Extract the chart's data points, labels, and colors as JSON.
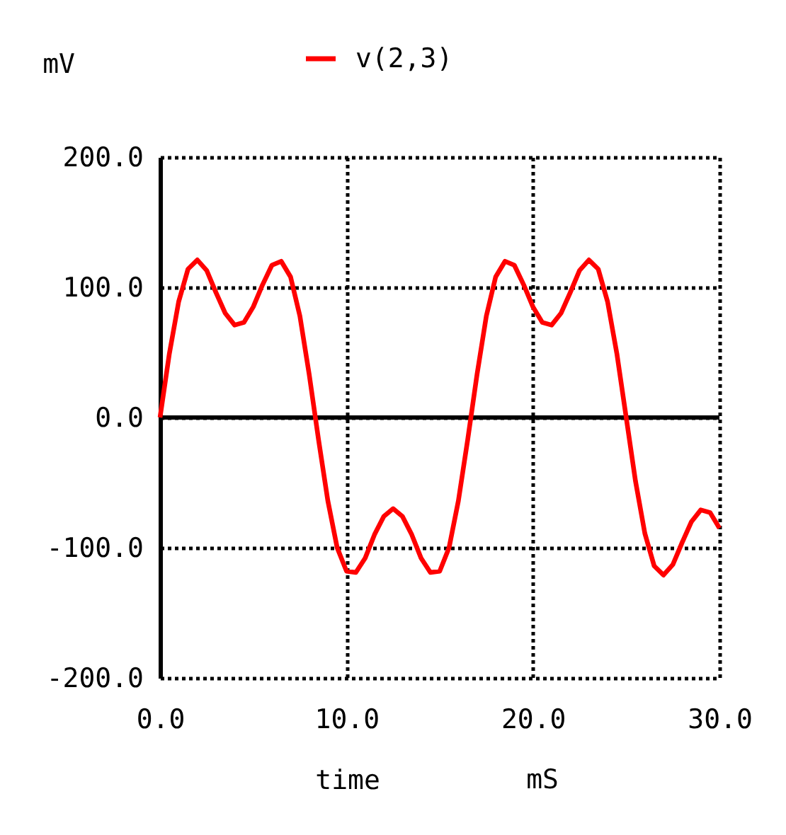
{
  "chart_data": {
    "type": "line",
    "xlabel": "time",
    "ylabel": "mV",
    "annotations": [
      "mS"
    ],
    "x": [
      0,
      0.5,
      1,
      1.5,
      2,
      2.5,
      3,
      3.5,
      4,
      4.5,
      5,
      5.5,
      6,
      6.5,
      7,
      7.5,
      8,
      8.5,
      9,
      9.5,
      10,
      10.5,
      11,
      11.5,
      12,
      12.5,
      13,
      13.5,
      14,
      14.5,
      15,
      15.5,
      16,
      16.5,
      17,
      17.5,
      18,
      18.5,
      19,
      19.5,
      20,
      20.5,
      21,
      21.5,
      22,
      22.5,
      23,
      23.5,
      24,
      24.5,
      25,
      25.5,
      26,
      26.5,
      27,
      27.5,
      28,
      28.5,
      29,
      29.5,
      30
    ],
    "series": [
      {
        "name": "v(2,3)",
        "color": "#ff0000",
        "values": [
          0,
          49,
          89,
          114,
          121,
          113,
          96,
          80,
          71,
          73,
          85,
          102,
          117,
          120,
          108,
          78,
          33,
          -17,
          -64,
          -100,
          -118,
          -119,
          -108,
          -90,
          -76,
          -70,
          -76,
          -90,
          -108,
          -119,
          -118,
          -100,
          -64,
          -17,
          33,
          78,
          108,
          120,
          117,
          102,
          85,
          73,
          71,
          80,
          96,
          113,
          121,
          114,
          89,
          49,
          0,
          -49,
          -89,
          -114,
          -121,
          -113,
          -96,
          -80,
          -71,
          -73,
          -85
        ]
      }
    ],
    "xlim": [
      0,
      30
    ],
    "ylim": [
      -200,
      200
    ],
    "xticks": [
      {
        "value": 0,
        "label": "0.0"
      },
      {
        "value": 10,
        "label": "10.0"
      },
      {
        "value": 20,
        "label": "20.0"
      },
      {
        "value": 30,
        "label": "30.0"
      }
    ],
    "yticks": [
      {
        "value": -200,
        "label": "-200.0"
      },
      {
        "value": -100,
        "label": "-100.0"
      },
      {
        "value": 0,
        "label": "0.0"
      },
      {
        "value": 100,
        "label": "100.0"
      },
      {
        "value": 200,
        "label": "200.0"
      }
    ],
    "grid": true,
    "legend": "top",
    "line_style": "solid",
    "ref_lines": [
      {
        "axis": "y",
        "value": 0,
        "color": "#000000",
        "line_style": "solid"
      }
    ]
  }
}
